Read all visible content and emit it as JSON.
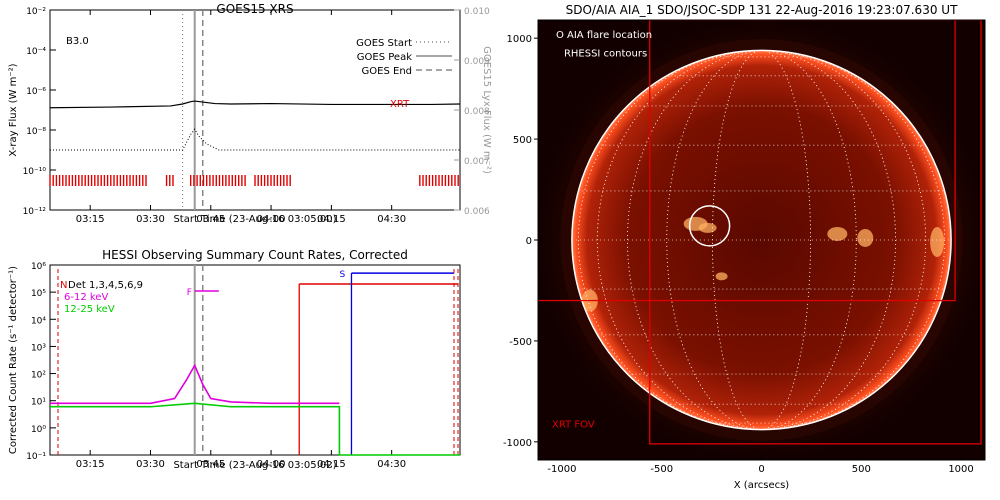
{
  "chart_data": [
    {
      "type": "line",
      "title": "GOES15 XRS",
      "xlabel": "Start Time (23-Aug-16 03:05:00)",
      "ylabel_left": "X-ray Flux (W m⁻²)",
      "ylabel_right": "GOES15 Lyx Flux (W m⁻²)",
      "class_label": "B3.0",
      "xrt_label": "XRT",
      "x_range": [
        "03:05",
        "04:47"
      ],
      "x_ticks": [
        "03:15",
        "03:30",
        "03:45",
        "04:00",
        "04:15",
        "04:30"
      ],
      "ylim_log": [
        -12,
        -2
      ],
      "y_ticks_left": [
        "10⁻¹²",
        "10⁻¹⁰",
        "10⁻⁸",
        "10⁻⁶",
        "10⁻⁴",
        "10⁻²"
      ],
      "ylim_right": [
        0.006,
        0.01
      ],
      "y_ticks_right": [
        "0.006",
        "0.007",
        "0.008",
        "0.009",
        "0.010"
      ],
      "legend": [
        {
          "name": "GOES Start",
          "style": "dotted"
        },
        {
          "name": "GOES Peak",
          "style": "solid"
        },
        {
          "name": "GOES End",
          "style": "dashed"
        }
      ],
      "legend_position": "top-right",
      "event_lines": {
        "start": "03:38",
        "peak": "03:41",
        "end": "03:43"
      },
      "series": [
        {
          "name": "XRS long",
          "x": [
            "03:05",
            "03:20",
            "03:35",
            "03:38",
            "03:40",
            "03:41",
            "03:43",
            "03:46",
            "03:50",
            "04:00",
            "04:15",
            "04:30",
            "04:40",
            "04:47"
          ],
          "y": [
            1.3e-07,
            1.4e-07,
            1.6e-07,
            2e-07,
            2.6e-07,
            2.8e-07,
            2.5e-07,
            2.1e-07,
            2e-07,
            2.1e-07,
            1.9e-07,
            1.9e-07,
            1.9e-07,
            2e-07
          ]
        },
        {
          "name": "XRS short",
          "x": [
            "03:05",
            "03:38",
            "03:40",
            "03:41",
            "03:42",
            "03:44",
            "03:47",
            "04:47"
          ],
          "y": [
            1e-09,
            1e-09,
            6e-09,
            1.1e-08,
            5e-09,
            2e-09,
            1e-09,
            1e-09
          ]
        }
      ],
      "xrt_coverage": [
        [
          "03:05",
          "03:29"
        ],
        [
          "03:34",
          "03:36"
        ],
        [
          "03:40",
          "03:54"
        ],
        [
          "03:56",
          "04:05"
        ],
        [
          "04:37",
          "04:47"
        ]
      ]
    },
    {
      "type": "line",
      "title": "HESSI Observing Summary Count Rates, Corrected",
      "xlabel": "Start Time (23-Aug-16 03:05:02)",
      "ylabel": "Corrected Count Rate (s⁻¹ detector⁻¹)",
      "x_range": [
        "03:05",
        "04:47"
      ],
      "x_ticks": [
        "03:15",
        "03:30",
        "03:45",
        "04:00",
        "04:15",
        "04:30"
      ],
      "ylim_log": [
        -1,
        6
      ],
      "y_ticks": [
        "10⁻¹",
        "10⁰",
        "10¹",
        "10²",
        "10³",
        "10⁴",
        "10⁵",
        "10⁶"
      ],
      "legend": [
        {
          "name": "Det 1,3,4,5,6,9",
          "color": "#000000"
        },
        {
          "name": "6-12 keV",
          "color": "#dd00dd"
        },
        {
          "name": "12-25 keV",
          "color": "#00cc00"
        }
      ],
      "legend_position": "top-left",
      "flag_labels": {
        "N": "N",
        "F": "F",
        "S": "S"
      },
      "series": [
        {
          "name": "6-12 keV",
          "x": [
            "03:05",
            "03:20",
            "03:30",
            "03:36",
            "03:39",
            "03:41",
            "03:43",
            "03:45",
            "03:50",
            "04:00",
            "04:15",
            "04:17"
          ],
          "y": [
            8,
            8,
            8,
            12,
            60,
            200,
            40,
            12,
            9,
            8,
            8,
            8
          ]
        },
        {
          "name": "12-25 keV",
          "x": [
            "03:05",
            "03:30",
            "03:41",
            "03:50",
            "04:17",
            "04:17",
            "04:47"
          ],
          "y": [
            6,
            6,
            8,
            6,
            6,
            0.1,
            0.1
          ]
        }
      ],
      "flare_bar": [
        "03:41",
        "03:47"
      ],
      "night_start": "04:07",
      "saa_start": "04:20"
    },
    {
      "type": "scatter",
      "title": "SDO/AIA AIA_1 SDO/JSOC-SDP 131 22-Aug-2016 19:23:07.630 UT",
      "xlabel": "X (arcsecs)",
      "ylabel": "Y (arcsecs)",
      "xlim": [
        -1120,
        1120
      ],
      "ylim": [
        -1090,
        1090
      ],
      "x_ticks": [
        "-1000",
        "-500",
        "0",
        "500",
        "1000"
      ],
      "y_ticks": [
        "-1000",
        "-500",
        "0",
        "500",
        "1000"
      ],
      "legend": [
        "O AIA flare location",
        "RHESSI contours"
      ],
      "fov_label": "XRT FOV",
      "flare_location": [
        -260,
        70
      ],
      "solar_radius": 950
    }
  ]
}
